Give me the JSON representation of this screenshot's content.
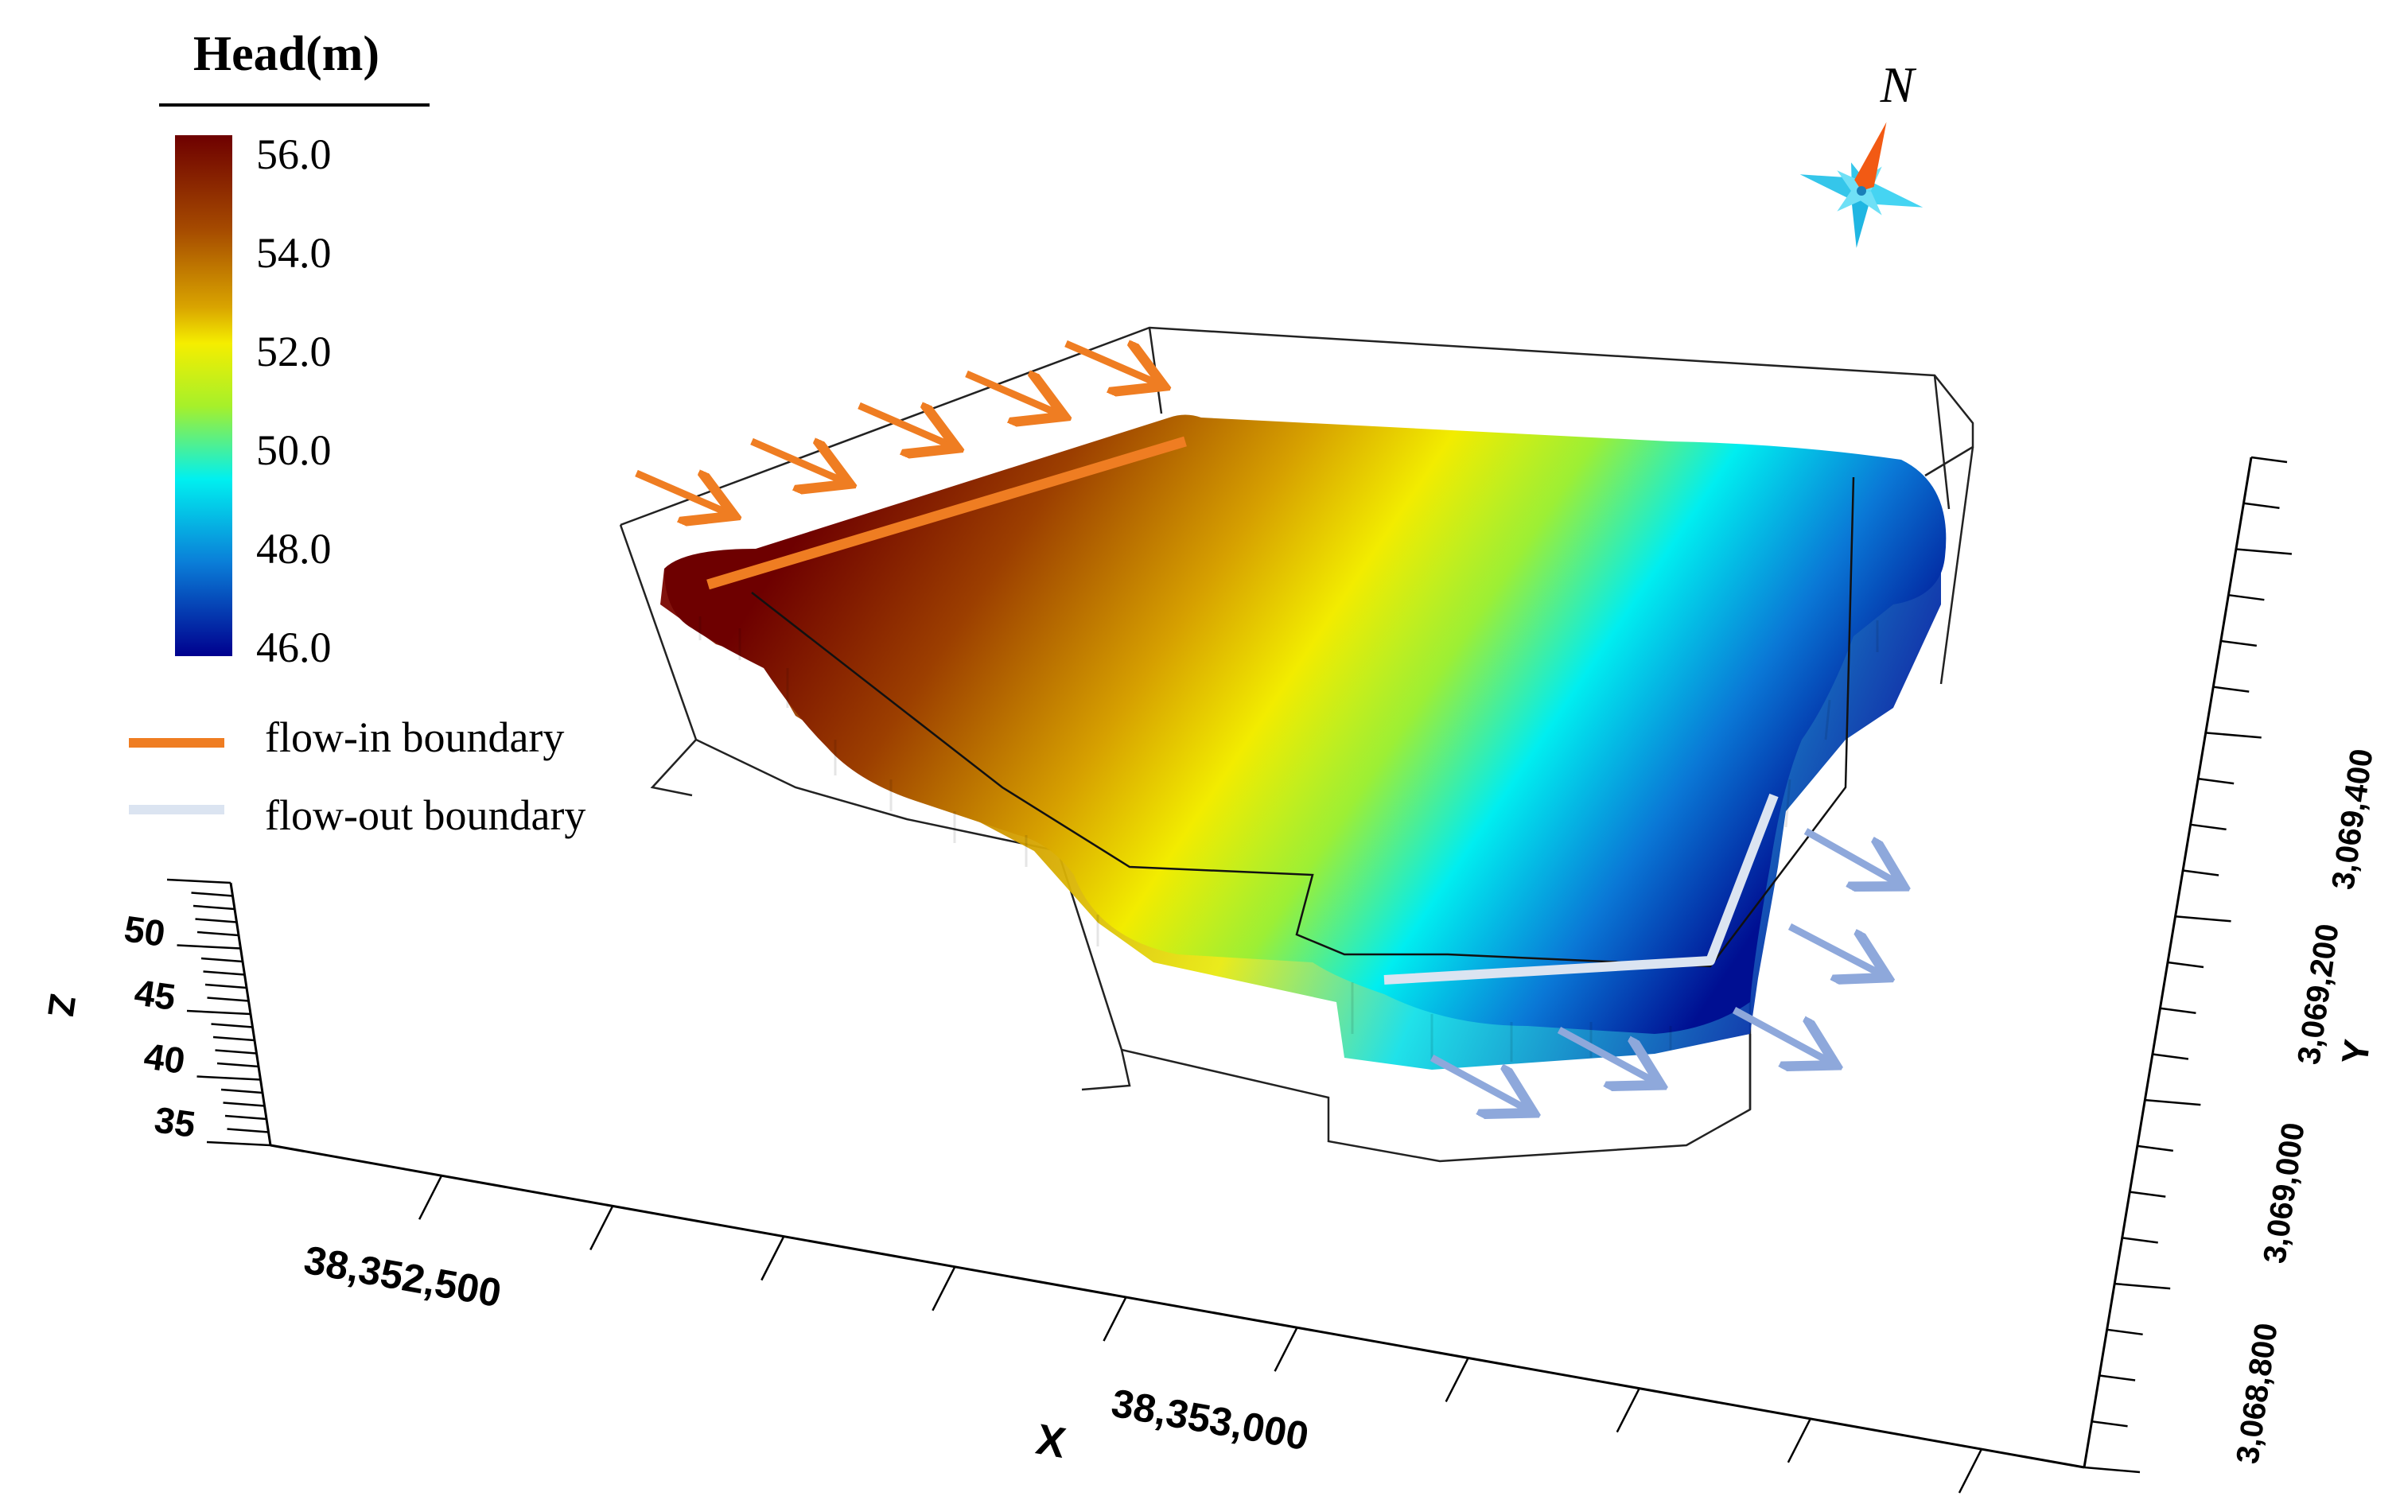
{
  "legend": {
    "title": "Head(m)",
    "ticks": [
      "56.0",
      "54.0",
      "52.0",
      "50.0",
      "48.0",
      "46.0"
    ],
    "color_stops": [
      "#6e0000",
      "#a54a00",
      "#d9a400",
      "#f5ee00",
      "#a6f02a",
      "#00f0f0",
      "#0a7ed8",
      "#00008e"
    ],
    "flow_in_label": "flow-in boundary",
    "flow_out_label": "flow-out boundary",
    "flow_in_color": "#ef7d22",
    "flow_out_color": "#dbe4f1",
    "arrow_out_color": "#8ea8db"
  },
  "north_label": "N",
  "axes": {
    "z": {
      "label": "Z",
      "ticks": [
        "50",
        "45",
        "40",
        "35"
      ]
    },
    "x": {
      "label": "X",
      "ticks": [
        "38,352,500",
        "38,353,000"
      ]
    },
    "y": {
      "label": "Y",
      "ticks": [
        "3,069,400",
        "3,069,200",
        "3,069,000",
        "3,068,800"
      ]
    }
  },
  "icons": {
    "compass": "compass-rose-icon"
  }
}
